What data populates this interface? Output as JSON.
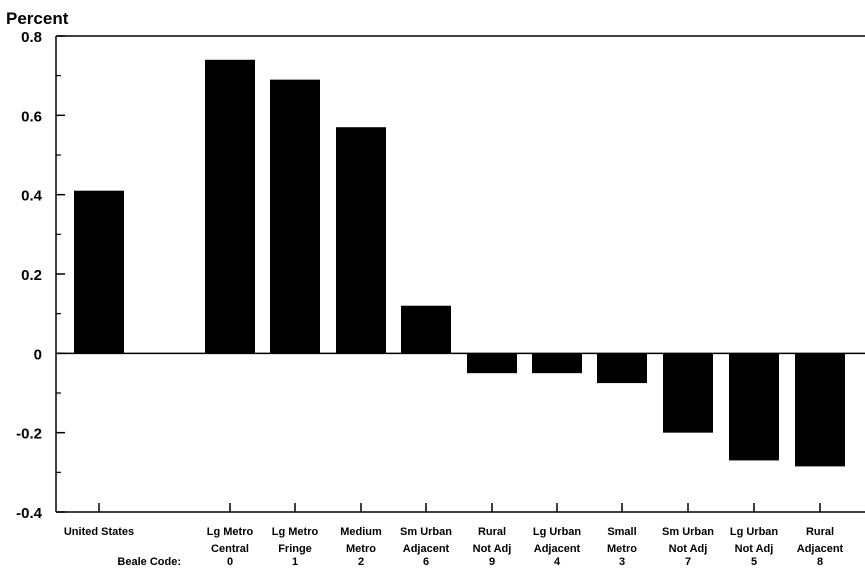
{
  "chart_data": {
    "type": "bar",
    "ylabel": "Percent",
    "ylim": [
      -0.4,
      0.8
    ],
    "yticks": [
      0.8,
      0.6,
      0.4,
      0.2,
      0,
      -0.2,
      -0.4
    ],
    "ytick_labels": [
      "0.8",
      "0.6",
      "0.4",
      "0.2",
      "0",
      "-0.2",
      "-0.4"
    ],
    "beale_code_label": "Beale Code:",
    "categories": [
      {
        "line1": "United States",
        "line2": "",
        "code": ""
      },
      {
        "line1": "Lg Metro",
        "line2": "Central",
        "code": "0"
      },
      {
        "line1": "Lg Metro",
        "line2": "Fringe",
        "code": "1"
      },
      {
        "line1": "Medium",
        "line2": "Metro",
        "code": "2"
      },
      {
        "line1": "Sm Urban",
        "line2": "Adjacent",
        "code": "6"
      },
      {
        "line1": "Rural",
        "line2": "Not Adj",
        "code": "9"
      },
      {
        "line1": "Lg Urban",
        "line2": "Adjacent",
        "code": "4"
      },
      {
        "line1": "Small",
        "line2": "Metro",
        "code": "3"
      },
      {
        "line1": "Sm Urban",
        "line2": "Not Adj",
        "code": "7"
      },
      {
        "line1": "Lg Urban",
        "line2": "Not Adj",
        "code": "5"
      },
      {
        "line1": "Rural",
        "line2": "Adjacent",
        "code": "8"
      }
    ],
    "values": [
      0.41,
      0.74,
      0.69,
      0.57,
      0.12,
      -0.05,
      -0.05,
      -0.075,
      -0.2,
      -0.27,
      -0.285
    ],
    "bar_color": "#000000",
    "grid": false
  }
}
